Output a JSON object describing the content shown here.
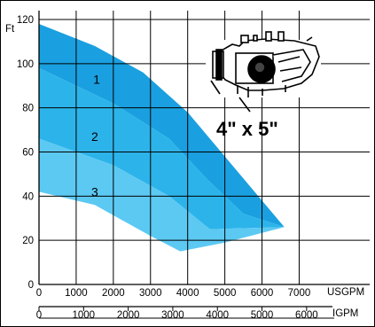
{
  "chart_data": {
    "type": "area",
    "title": "",
    "y_unit": "Ft",
    "x_unit": "USGPM",
    "x2_unit": "IGPM",
    "annotation": "4\" x 5\"",
    "ylim": [
      0,
      120
    ],
    "y_ticks": [
      0,
      20,
      40,
      60,
      80,
      100,
      120
    ],
    "xlim": [
      0,
      7800
    ],
    "x_ticks": [
      0,
      1000,
      2000,
      3000,
      4000,
      5000,
      6000,
      7000
    ],
    "x2_ticks": [
      0,
      1000,
      2000,
      3000,
      4000,
      5000,
      6000
    ],
    "x2_factor": 1.2,
    "grid": true,
    "colors": {
      "outer": "#1aa0e0",
      "middle": "#2cb4ea",
      "inner": "#5cc9f3",
      "grid": "#000000"
    },
    "zones": [
      {
        "name": "1",
        "label_at": [
          1550,
          93
        ],
        "upper": [
          [
            0,
            118
          ],
          [
            1500,
            108
          ],
          [
            2800,
            96
          ],
          [
            4000,
            78
          ],
          [
            5000,
            58
          ],
          [
            6600,
            26
          ]
        ],
        "lower": [
          [
            0,
            98
          ],
          [
            2000,
            82
          ],
          [
            3500,
            66
          ],
          [
            4500,
            48
          ],
          [
            5500,
            32
          ],
          [
            6600,
            26
          ]
        ]
      },
      {
        "name": "2",
        "label_at": [
          1500,
          67
        ],
        "upper": [
          [
            0,
            98
          ],
          [
            2000,
            82
          ],
          [
            3500,
            66
          ],
          [
            4500,
            48
          ],
          [
            5500,
            32
          ],
          [
            6600,
            26
          ]
        ],
        "lower": [
          [
            0,
            66
          ],
          [
            2000,
            54
          ],
          [
            3500,
            40
          ],
          [
            4600,
            25
          ],
          [
            6600,
            26
          ]
        ]
      },
      {
        "name": "3",
        "label_at": [
          1500,
          42
        ],
        "upper": [
          [
            0,
            66
          ],
          [
            2000,
            54
          ],
          [
            3500,
            40
          ],
          [
            4600,
            25
          ],
          [
            6600,
            26
          ]
        ],
        "lower": [
          [
            0,
            42
          ],
          [
            1500,
            36
          ],
          [
            3000,
            22
          ],
          [
            3800,
            15
          ],
          [
            5000,
            19
          ],
          [
            6600,
            26
          ]
        ]
      }
    ]
  }
}
